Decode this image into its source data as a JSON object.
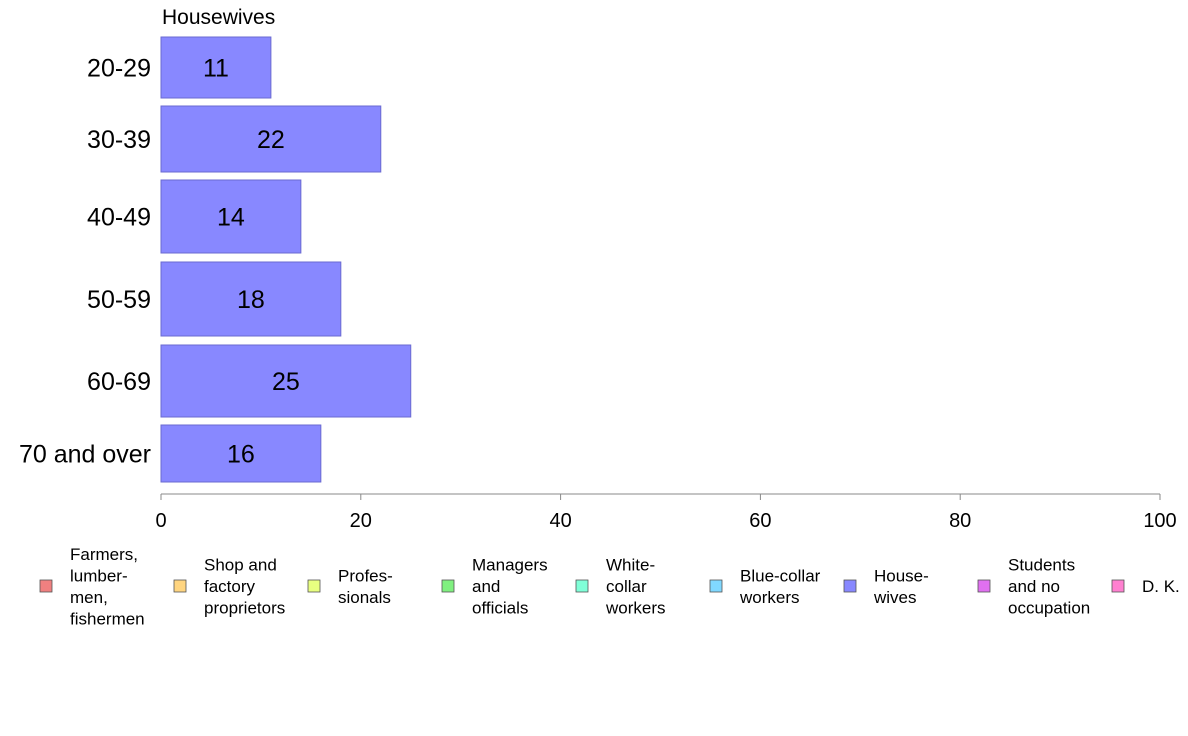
{
  "chart_data": {
    "type": "bar",
    "orientation": "horizontal",
    "title": "Housewives",
    "categories": [
      "20-29",
      "30-39",
      "40-49",
      "50-59",
      "60-69",
      "70 and over"
    ],
    "values": [
      11,
      22,
      14,
      18,
      25,
      16
    ],
    "bar_color": "#8888ff",
    "bar_edge_color": "#6a6ad0",
    "xlim": [
      0,
      100
    ],
    "x_ticks": [
      0,
      20,
      40,
      60,
      80,
      100
    ],
    "grid": false,
    "legend_position": "bottom",
    "legend": [
      {
        "lines": [
          "Farmers,",
          "lumber-",
          "men,",
          "fishermen"
        ],
        "color": "#f08080"
      },
      {
        "lines": [
          "Shop and",
          "factory",
          "proprietors"
        ],
        "color": "#ffd580"
      },
      {
        "lines": [
          "Profes-",
          "sionals"
        ],
        "color": "#e8ff80"
      },
      {
        "lines": [
          "Managers",
          "and",
          "officials"
        ],
        "color": "#80f080"
      },
      {
        "lines": [
          "White-",
          "collar",
          "workers"
        ],
        "color": "#80ffd8"
      },
      {
        "lines": [
          "Blue-collar",
          "workers"
        ],
        "color": "#80d8ff"
      },
      {
        "lines": [
          "House-",
          "wives"
        ],
        "color": "#8888ff"
      },
      {
        "lines": [
          "Students",
          "and no",
          "occupation"
        ],
        "color": "#e070f0"
      },
      {
        "lines": [
          "D. K."
        ],
        "color": "#ff80d0"
      }
    ]
  }
}
